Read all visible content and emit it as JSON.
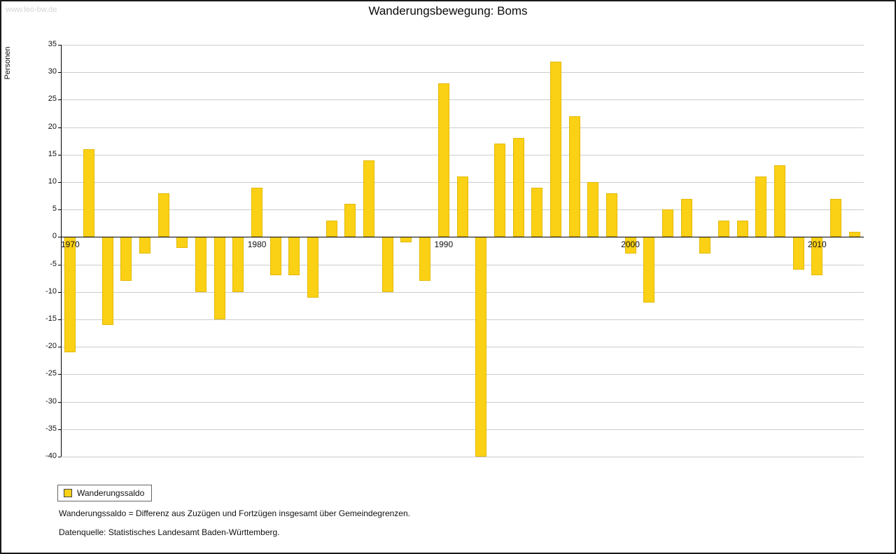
{
  "page": {
    "watermark": "www.leo-bw.de",
    "title": "Wanderungsbewegung: Boms",
    "y_axis_label": "Personen",
    "legend_label": "Wanderungssaldo",
    "footnote1": "Wanderungssaldo = Differenz aus Zuzügen und Fortzügen insgesamt über Gemeindegrenzen.",
    "footnote2": "Datenquelle: Statistisches Landesamt Baden-Württemberg."
  },
  "colors": {
    "bar": "#FBD116",
    "bar_border": "#E3B905",
    "grid": "#cccccc",
    "axis": "#000000"
  },
  "chart_data": {
    "type": "bar",
    "title": "Wanderungsbewegung: Boms",
    "xlabel": "",
    "ylabel": "Personen",
    "series_name": "Wanderungssaldo",
    "ylim": [
      -40,
      35
    ],
    "ytick_step": 5,
    "grid": true,
    "legend_position": "bottom-left",
    "xticks": [
      1970,
      1980,
      1990,
      2000,
      2010
    ],
    "years": [
      1970,
      1971,
      1972,
      1973,
      1974,
      1975,
      1976,
      1977,
      1978,
      1979,
      1980,
      1981,
      1982,
      1983,
      1984,
      1985,
      1986,
      1987,
      1988,
      1989,
      1990,
      1991,
      1992,
      1993,
      1994,
      1995,
      1996,
      1997,
      1998,
      1999,
      2000,
      2001,
      2002,
      2003,
      2004,
      2005,
      2006,
      2007,
      2008,
      2009,
      2010,
      2011,
      2012
    ],
    "values": [
      -21,
      16,
      -16,
      -8,
      -3,
      8,
      -2,
      -10,
      -15,
      -10,
      9,
      -7,
      -7,
      -11,
      3,
      6,
      14,
      -10,
      -1,
      -8,
      28,
      11,
      -40,
      17,
      18,
      9,
      32,
      22,
      10,
      8,
      -3,
      -12,
      5,
      7,
      -3,
      3,
      3,
      11,
      13,
      -6,
      -7,
      7,
      1
    ]
  }
}
